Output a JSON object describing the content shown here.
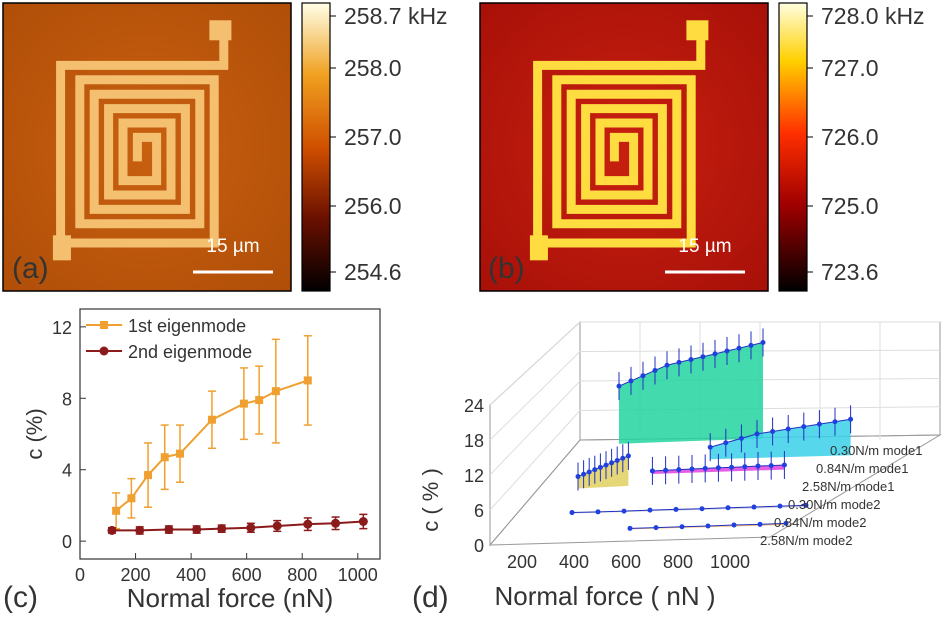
{
  "panels": {
    "a": {
      "label": "(a)",
      "scalebar": "15 µm",
      "colorbar": {
        "ticks": [
          "258.7 kHz",
          "258.0",
          "257.0",
          "256.0",
          "254.6"
        ],
        "min": 254.6,
        "max": 258.7,
        "unit": "kHz"
      }
    },
    "b": {
      "label": "(b)",
      "scalebar": "15 µm",
      "colorbar": {
        "ticks": [
          "728.0 kHz",
          "727.0",
          "726.0",
          "725.0",
          "723.6"
        ],
        "min": 723.6,
        "max": 728.0,
        "unit": "kHz"
      }
    },
    "c": {
      "label": "(c)"
    },
    "d": {
      "label": "(d)"
    }
  },
  "chart_data": [
    {
      "panel": "c",
      "type": "line",
      "xlabel": "Normal force (nN)",
      "ylabel": "c (%)",
      "xlim": [
        0,
        1080
      ],
      "ylim": [
        -1,
        13
      ],
      "xticks": [
        "0",
        "200",
        "400",
        "600",
        "800",
        "1000"
      ],
      "yticks": [
        "0",
        "4",
        "8",
        "12"
      ],
      "legend_position": "top-left",
      "series": [
        {
          "name": "1st eigenmode",
          "color": "#f0a030",
          "marker": "square",
          "x": [
            130,
            185,
            245,
            305,
            360,
            475,
            590,
            645,
            705,
            820
          ],
          "y": [
            1.7,
            2.4,
            3.7,
            4.7,
            4.9,
            6.8,
            7.7,
            7.9,
            8.4,
            9.0
          ],
          "err": [
            1.0,
            1.1,
            1.8,
            1.8,
            1.6,
            1.6,
            2.0,
            1.9,
            2.9,
            2.5
          ]
        },
        {
          "name": "2nd eigenmode",
          "color": "#8b1a1a",
          "marker": "circle",
          "x": [
            115,
            215,
            320,
            420,
            510,
            615,
            710,
            820,
            920,
            1020
          ],
          "y": [
            0.6,
            0.6,
            0.65,
            0.65,
            0.7,
            0.75,
            0.85,
            0.95,
            1.0,
            1.1
          ],
          "err": [
            0.15,
            0.2,
            0.2,
            0.2,
            0.2,
            0.25,
            0.3,
            0.35,
            0.35,
            0.4
          ]
        }
      ]
    },
    {
      "panel": "d",
      "type": "line",
      "subtype": "3d-waterfall",
      "xlabel": "Normal force ( nN )",
      "ylabel": "c ( % )",
      "xticks": [
        "200",
        "400",
        "600",
        "800",
        "1000"
      ],
      "zticks": [
        "0",
        "6",
        "12",
        "18",
        "24"
      ],
      "categories": [
        "0.30N/m  mode1",
        "0.84N/m mode1",
        "2.58N/m mode1",
        "0.30N/m  mode2",
        "0.84N/m mode2",
        "2.58N/m mode2"
      ],
      "series": [
        {
          "name": "0.30N/m  mode1",
          "color": "#22d4a0",
          "x": [
            170,
            230,
            290,
            350,
            410,
            470,
            530,
            590,
            650,
            710,
            770,
            830,
            890
          ],
          "y": [
            12,
            13,
            14,
            15,
            16,
            16.5,
            17,
            17.5,
            18,
            18.5,
            19,
            19.5,
            20
          ]
        },
        {
          "name": "0.84N/m mode1",
          "color": "#3ad0e8",
          "x": [
            520,
            580,
            640,
            700,
            760,
            820,
            880,
            940,
            1000,
            1060
          ],
          "y": [
            3,
            4,
            5,
            6,
            6.5,
            7,
            7.5,
            8,
            8.5,
            9
          ]
        },
        {
          "name": "2.58N/m mode1",
          "color": "#e040e0",
          "x": [
            420,
            480,
            540,
            600,
            660,
            720,
            780,
            840,
            900,
            960,
            1020
          ],
          "y": [
            1.5,
            1.6,
            1.7,
            1.8,
            1.9,
            2.0,
            2.0,
            2.1,
            2.2,
            2.2,
            2.3
          ]
        },
        {
          "name": "0.30N/m  mode2",
          "color": "#e0d060",
          "x": [
            200,
            240,
            280,
            320,
            360,
            400,
            440,
            480,
            520,
            560
          ],
          "y": [
            3,
            3.5,
            4,
            4.5,
            5,
            5.5,
            6,
            6.5,
            7,
            7.5
          ]
        },
        {
          "name": "0.84N/m mode2",
          "color": "#c8c8d8",
          "x": [
            200,
            300,
            400,
            500,
            600,
            700,
            800,
            900,
            1000,
            1100
          ],
          "y": [
            0.5,
            0.5,
            0.5,
            0.6,
            0.6,
            0.6,
            0.7,
            0.7,
            0.8,
            0.8
          ]
        },
        {
          "name": "2.58N/m mode2",
          "color": "#f0b060",
          "x": [
            500,
            600,
            700,
            800,
            900,
            1000,
            1100
          ],
          "y": [
            0.5,
            0.5,
            0.6,
            0.6,
            0.7,
            0.7,
            0.8
          ]
        }
      ]
    }
  ]
}
